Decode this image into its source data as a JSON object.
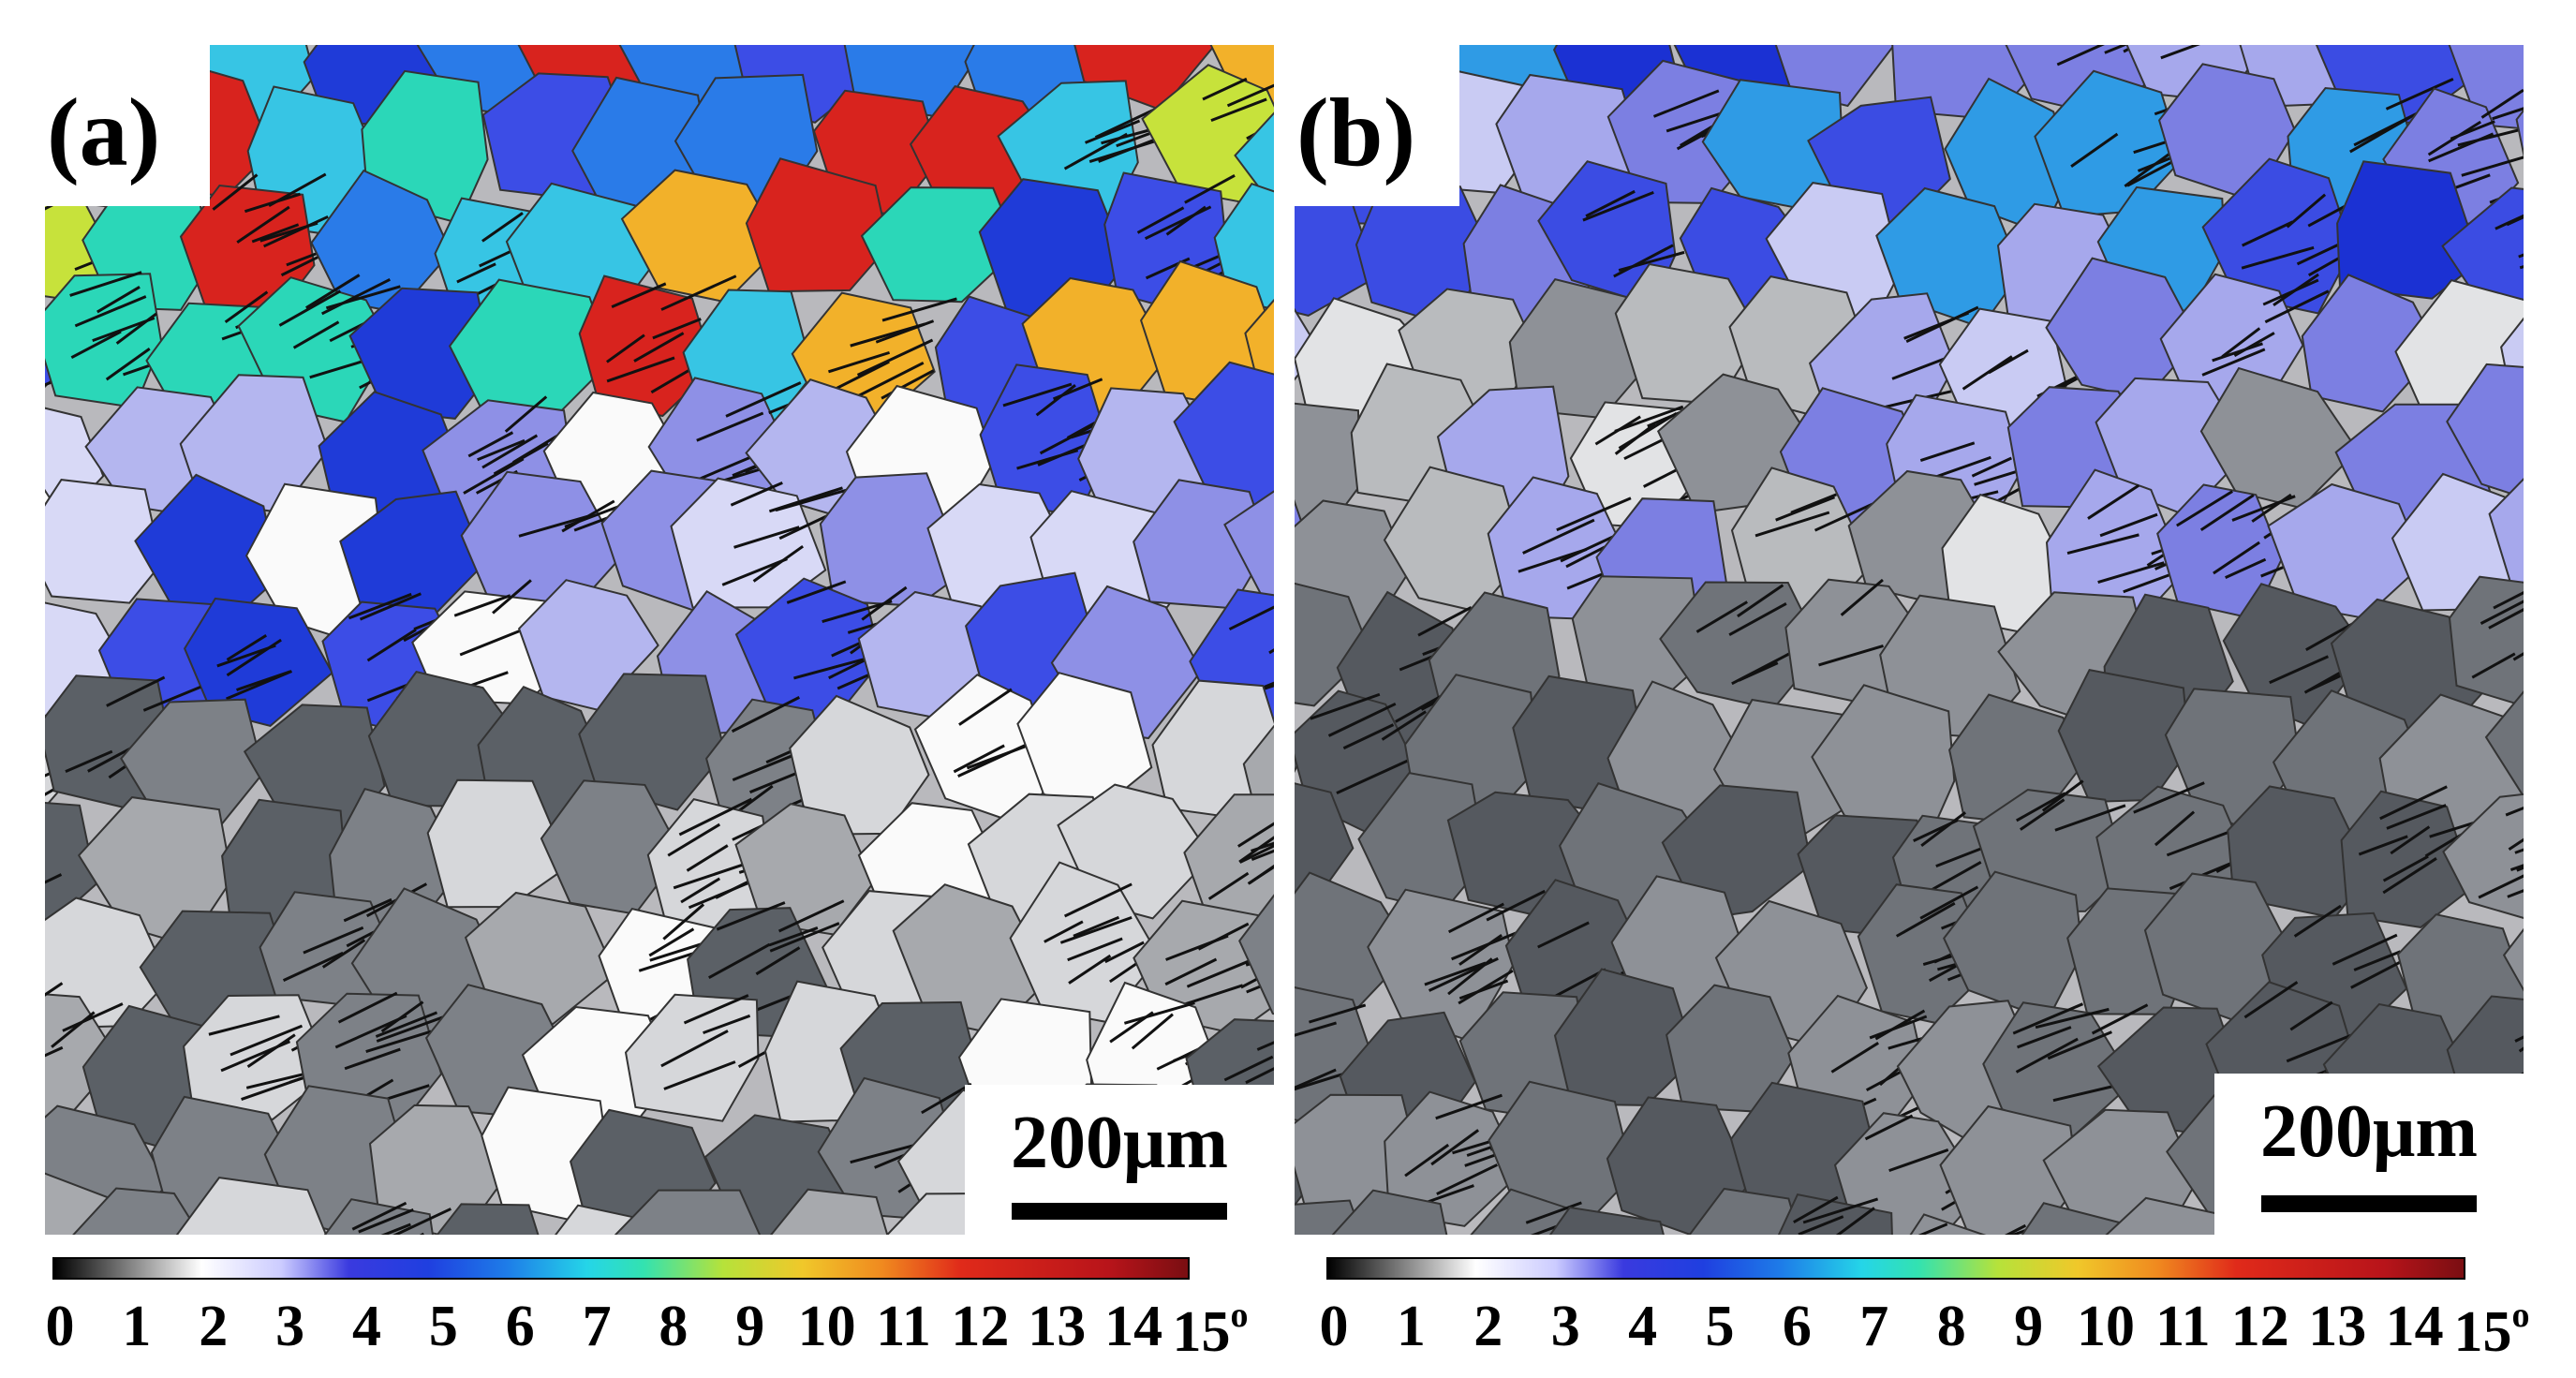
{
  "panels": [
    {
      "label": "(a)",
      "scale_label": "200μm",
      "colorbar": {
        "ticks": [
          "0",
          "1",
          "2",
          "3",
          "4",
          "5",
          "6",
          "7",
          "8",
          "9",
          "10",
          "11",
          "12",
          "13",
          "14",
          "15"
        ],
        "unit": "o",
        "range_deg": [
          0,
          15
        ]
      },
      "grain_colors": [
        "#5b6066",
        "#7d8187",
        "#a7a9ad",
        "#d6d7da",
        "#fafafa",
        "#d8d9f6",
        "#b4b6ef",
        "#8e90e6",
        "#3c4de6",
        "#1f3bd8",
        "#2a7be8",
        "#37c5e4",
        "#2bd7b8",
        "#c7e23b",
        "#f2b12a",
        "#d8231e"
      ]
    },
    {
      "label": "(b)",
      "scale_label": "200μm",
      "colorbar": {
        "ticks": [
          "0",
          "1",
          "2",
          "3",
          "4",
          "5",
          "6",
          "7",
          "8",
          "9",
          "10",
          "11",
          "12",
          "13",
          "14",
          "15"
        ],
        "unit": "o",
        "range_deg": [
          0,
          15
        ]
      },
      "grain_colors": [
        "#55595f",
        "#6f7379",
        "#8e9197",
        "#b9bbbe",
        "#e2e3e5",
        "#c9cbf3",
        "#a6a8ec",
        "#7c7fe2",
        "#3b4ce3",
        "#1b31d3",
        "#2f9be5"
      ]
    }
  ]
}
